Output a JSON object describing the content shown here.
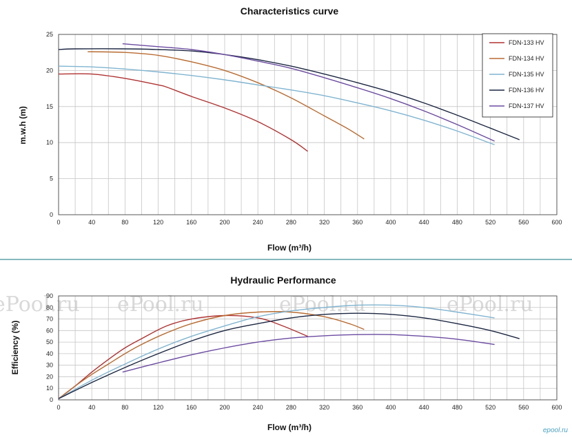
{
  "chart_data": [
    {
      "type": "line",
      "title": "Characteristics curve",
      "xlabel": "Flow (m³/h)",
      "ylabel": "m.w.h (m)",
      "xlim": [
        0,
        600
      ],
      "ylim": [
        0,
        25
      ],
      "xticks": [
        "0",
        "40",
        "80",
        "120",
        "160",
        "200",
        "240",
        "280",
        "320",
        "360",
        "400",
        "440",
        "480",
        "520",
        "560",
        "600"
      ],
      "yticks": [
        "0",
        "5",
        "10",
        "15",
        "20",
        "25"
      ],
      "grid": true,
      "legend_position": "top-right",
      "series": [
        {
          "name": "FDN-133  HV",
          "color": "#b03030",
          "points": [
            [
              0,
              19.5
            ],
            [
              40,
              19.5
            ],
            [
              80,
              18.9
            ],
            [
              120,
              18.0
            ],
            [
              130,
              17.7
            ],
            [
              160,
              16.4
            ],
            [
              200,
              14.8
            ],
            [
              240,
              12.9
            ],
            [
              280,
              10.4
            ],
            [
              300,
              8.8
            ]
          ]
        },
        {
          "name": "FDN-134  HV",
          "color": "#b86a30",
          "points": [
            [
              35,
              22.6
            ],
            [
              80,
              22.5
            ],
            [
              120,
              22.1
            ],
            [
              160,
              21.2
            ],
            [
              200,
              20.0
            ],
            [
              240,
              18.3
            ],
            [
              280,
              16.2
            ],
            [
              320,
              13.7
            ],
            [
              350,
              11.8
            ],
            [
              368,
              10.5
            ]
          ]
        },
        {
          "name": "FDN-135  HV",
          "color": "#7fb4d0",
          "points": [
            [
              0,
              20.6
            ],
            [
              40,
              20.5
            ],
            [
              80,
              20.2
            ],
            [
              120,
              19.8
            ],
            [
              160,
              19.3
            ],
            [
              200,
              18.7
            ],
            [
              240,
              18.0
            ],
            [
              280,
              17.3
            ],
            [
              320,
              16.5
            ],
            [
              360,
              15.5
            ],
            [
              400,
              14.4
            ],
            [
              440,
              13.1
            ],
            [
              480,
              11.6
            ],
            [
              525,
              9.7
            ]
          ]
        },
        {
          "name": "FDN-136  HV",
          "color": "#1a2540",
          "points": [
            [
              0,
              22.9
            ],
            [
              20,
              23.0
            ],
            [
              80,
              23.0
            ],
            [
              120,
              22.9
            ],
            [
              160,
              22.7
            ],
            [
              200,
              22.2
            ],
            [
              240,
              21.5
            ],
            [
              280,
              20.6
            ],
            [
              320,
              19.5
            ],
            [
              360,
              18.3
            ],
            [
              400,
              17.0
            ],
            [
              440,
              15.5
            ],
            [
              480,
              13.8
            ],
            [
              520,
              12.0
            ],
            [
              555,
              10.4
            ]
          ]
        },
        {
          "name": "FDN-137  HV",
          "color": "#6a4aa0",
          "points": [
            [
              77,
              23.7
            ],
            [
              120,
              23.3
            ],
            [
              160,
              22.9
            ],
            [
              200,
              22.2
            ],
            [
              240,
              21.3
            ],
            [
              280,
              20.3
            ],
            [
              320,
              19.0
            ],
            [
              360,
              17.6
            ],
            [
              400,
              16.1
            ],
            [
              440,
              14.4
            ],
            [
              480,
              12.5
            ],
            [
              525,
              10.2
            ]
          ]
        }
      ]
    },
    {
      "type": "line",
      "title": "Hydraulic Performance",
      "xlabel": "Flow (m³/h)",
      "ylabel": "Efficiency (%)",
      "xlim": [
        0,
        600
      ],
      "ylim": [
        0,
        90
      ],
      "xticks": [
        "0",
        "40",
        "80",
        "120",
        "160",
        "200",
        "240",
        "280",
        "320",
        "360",
        "400",
        "440",
        "480",
        "520",
        "560",
        "600"
      ],
      "yticks": [
        "0",
        "10",
        "20",
        "30",
        "40",
        "50",
        "60",
        "70",
        "80",
        "90"
      ],
      "grid": true,
      "series": [
        {
          "name": "FDN-133  HV",
          "color": "#b03030",
          "points": [
            [
              0,
              1
            ],
            [
              20,
              12
            ],
            [
              40,
              24
            ],
            [
              60,
              35
            ],
            [
              80,
              45
            ],
            [
              100,
              53
            ],
            [
              130,
              64
            ],
            [
              160,
              70
            ],
            [
              200,
              73
            ],
            [
              240,
              71
            ],
            [
              270,
              64
            ],
            [
              300,
              55
            ]
          ]
        },
        {
          "name": "FDN-134  HV",
          "color": "#b86a30",
          "points": [
            [
              0,
              1
            ],
            [
              20,
              12
            ],
            [
              40,
              22
            ],
            [
              60,
              31
            ],
            [
              80,
              40
            ],
            [
              100,
              48
            ],
            [
              130,
              58
            ],
            [
              160,
              66
            ],
            [
              200,
              73
            ],
            [
              240,
              76
            ],
            [
              280,
              76
            ],
            [
              320,
              72
            ],
            [
              350,
              66
            ],
            [
              368,
              61
            ]
          ]
        },
        {
          "name": "FDN-135  HV",
          "color": "#7fb4d0",
          "points": [
            [
              0,
              1
            ],
            [
              40,
              17
            ],
            [
              80,
              31
            ],
            [
              120,
              44
            ],
            [
              160,
              55
            ],
            [
              200,
              64
            ],
            [
              240,
              72
            ],
            [
              280,
              77
            ],
            [
              320,
              80
            ],
            [
              360,
              82
            ],
            [
              400,
              82
            ],
            [
              440,
              80
            ],
            [
              480,
              76
            ],
            [
              525,
              71
            ]
          ]
        },
        {
          "name": "FDN-136  HV",
          "color": "#1a2540",
          "points": [
            [
              0,
              1
            ],
            [
              40,
              15
            ],
            [
              80,
              28
            ],
            [
              120,
              40
            ],
            [
              160,
              51
            ],
            [
              200,
              60
            ],
            [
              240,
              66
            ],
            [
              280,
              71
            ],
            [
              320,
              74
            ],
            [
              360,
              75
            ],
            [
              400,
              74
            ],
            [
              440,
              71
            ],
            [
              480,
              66
            ],
            [
              520,
              60
            ],
            [
              555,
              53
            ]
          ]
        },
        {
          "name": "FDN-137  HV",
          "color": "#6a4aa0",
          "points": [
            [
              77,
              24
            ],
            [
              120,
              32
            ],
            [
              160,
              39
            ],
            [
              200,
              45
            ],
            [
              240,
              50
            ],
            [
              280,
              53.5
            ],
            [
              320,
              55.5
            ],
            [
              360,
              56.5
            ],
            [
              400,
              56.5
            ],
            [
              440,
              55
            ],
            [
              480,
              52.5
            ],
            [
              525,
              48
            ]
          ]
        }
      ]
    }
  ],
  "watermarks": [
    "ePool.ru",
    "ePool.ru",
    "ePool.ru",
    "ePool.ru"
  ],
  "brand": "epool.ru"
}
